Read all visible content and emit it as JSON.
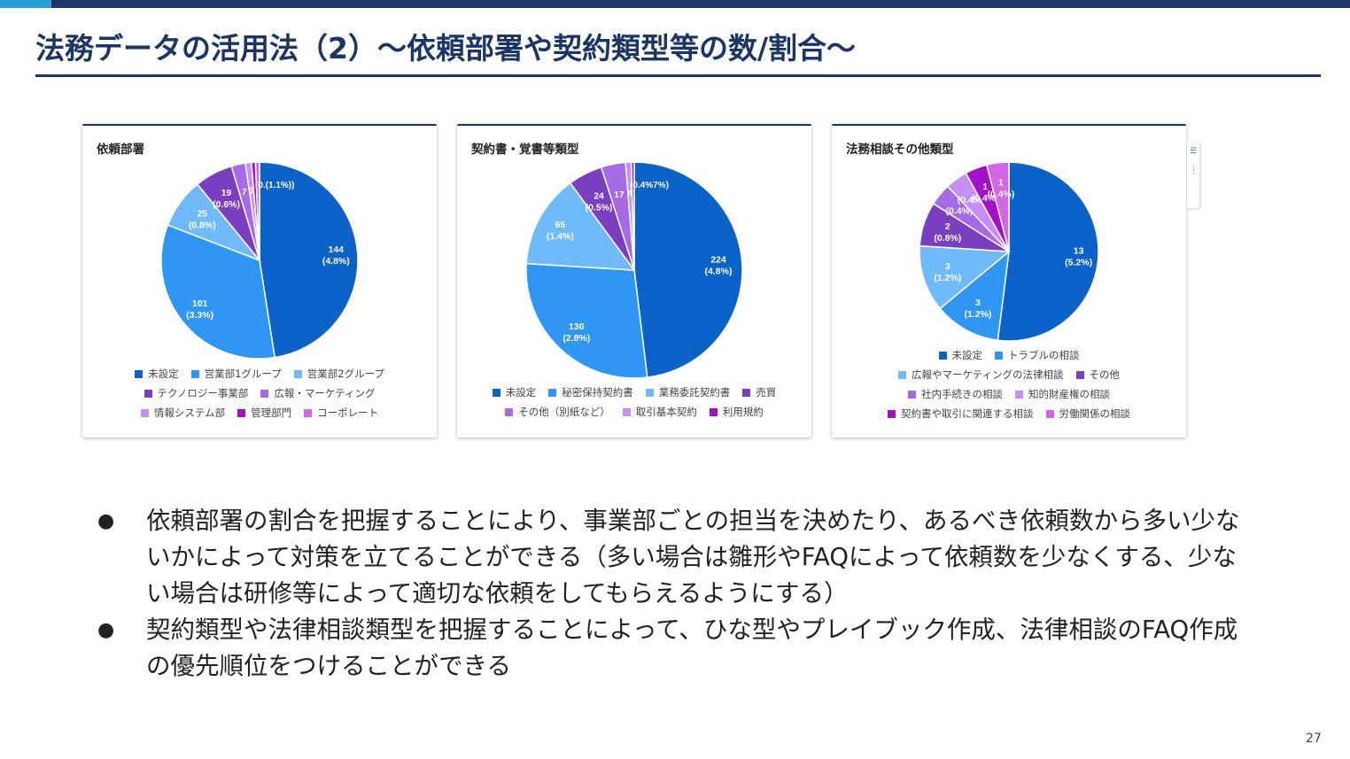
{
  "slide": {
    "title": "法務データの活用法（2）〜依頼部署や契約類型等の数/割合〜",
    "page_number": "27",
    "bullets": [
      "依頼部署の割合を把握することにより、事業部ごとの担当を決めたり、あるべき依頼数から多い少ないかによって対策を立てることができる（多い場合は雛形やFAQによって依頼数を少なくする、少ない場合は研修等によって適切な依頼をしてもらえるようにする）",
      "契約類型や法律相談類型を把握することによって、ひな型やプレイブック作成、法律相談のFAQ作成の優先順位をつけることができる"
    ]
  },
  "chart_data": [
    {
      "type": "pie",
      "title": "依頼部署",
      "slices": [
        {
          "name": "未設定",
          "value": 144,
          "label": "144",
          "pct": "(4.8%)",
          "color": "#0b63c9"
        },
        {
          "name": "営業部1グループ",
          "value": 101,
          "label": "101",
          "pct": "(3.3%)",
          "color": "#2f96f3"
        },
        {
          "name": "営業部2グループ",
          "value": 25,
          "label": "25",
          "pct": "(0.8%)",
          "color": "#6fbafa"
        },
        {
          "name": "テクノロジー事業部",
          "value": 19,
          "label": "19",
          "pct": "(0.6%)",
          "color": "#7a3fc0"
        },
        {
          "name": "広報・マーケティング",
          "value": 7,
          "label": "7",
          "pct": "",
          "color": "#a66ae8"
        },
        {
          "name": "情報システム部",
          "value": 3,
          "label": "3",
          "pct": "",
          "color": "#c490f5"
        },
        {
          "name": "管理部門",
          "value": 2,
          "label": "",
          "pct": "",
          "color": "#a40fc8"
        },
        {
          "name": "コーポレート",
          "value": 2,
          "label": "",
          "pct": "",
          "color": "#d466e6"
        }
      ],
      "overlap_label": "(0.(1.1%))",
      "legend_rows": [
        [
          0,
          1,
          2
        ],
        [
          3,
          4
        ],
        [
          5,
          6,
          7
        ]
      ]
    },
    {
      "type": "pie",
      "title": "契約書・覚書等類型",
      "slices": [
        {
          "name": "未設定",
          "value": 224,
          "label": "224",
          "pct": "(4.8%)",
          "color": "#0b63c9"
        },
        {
          "name": "秘密保持契約書",
          "value": 130,
          "label": "130",
          "pct": "(2.8%)",
          "color": "#2f96f3"
        },
        {
          "name": "業務委託契約書",
          "value": 65,
          "label": "65",
          "pct": "(1.4%)",
          "color": "#6fbafa"
        },
        {
          "name": "売買",
          "value": 24,
          "label": "24",
          "pct": "(0.5%)",
          "color": "#7a3fc0"
        },
        {
          "name": "その他（別紙など）",
          "value": 17,
          "label": "17",
          "pct": "",
          "color": "#a66ae8"
        },
        {
          "name": "取引基本契約",
          "value": 4,
          "label": "4",
          "pct": "",
          "color": "#c490f5"
        },
        {
          "name": "利用規約",
          "value": 2,
          "label": "",
          "pct": "",
          "color": "#a40fc8"
        }
      ],
      "overlap_label": "(0.4%7%)",
      "legend_rows": [
        [
          0,
          1,
          2,
          3
        ],
        [
          4,
          5,
          6
        ]
      ]
    },
    {
      "type": "pie",
      "title": "法務相談その他類型",
      "slices": [
        {
          "name": "未設定",
          "value": 13,
          "label": "13",
          "pct": "(5.2%)",
          "color": "#0b63c9"
        },
        {
          "name": "トラブルの相談",
          "value": 3,
          "label": "3",
          "pct": "(1.2%)",
          "color": "#2f96f3"
        },
        {
          "name": "広報やマーケティングの法律相談",
          "value": 3,
          "label": "3",
          "pct": "(1.2%)",
          "color": "#6fbafa"
        },
        {
          "name": "その他",
          "value": 2,
          "label": "2",
          "pct": "(0.8%)",
          "color": "#7a3fc0"
        },
        {
          "name": "社内手続きの相談",
          "value": 1,
          "label": "",
          "pct": "(0.4%)",
          "color": "#a66ae8"
        },
        {
          "name": "知的財産権の相談",
          "value": 1,
          "label": "",
          "pct": "(0.4%)",
          "color": "#c490f5"
        },
        {
          "name": "契約書や取引に関連する相談",
          "value": 1,
          "label": "1",
          "pct": "(0.4%)",
          "color": "#a40fc8"
        },
        {
          "name": "労働関係の相談",
          "value": 1,
          "label": "1",
          "pct": "(0.4%)",
          "color": "#d466e6"
        }
      ],
      "overlap_label": "",
      "legend_rows": [
        [
          0,
          1
        ],
        [
          2,
          3
        ],
        [
          4,
          5
        ],
        [
          6,
          7
        ]
      ]
    }
  ]
}
